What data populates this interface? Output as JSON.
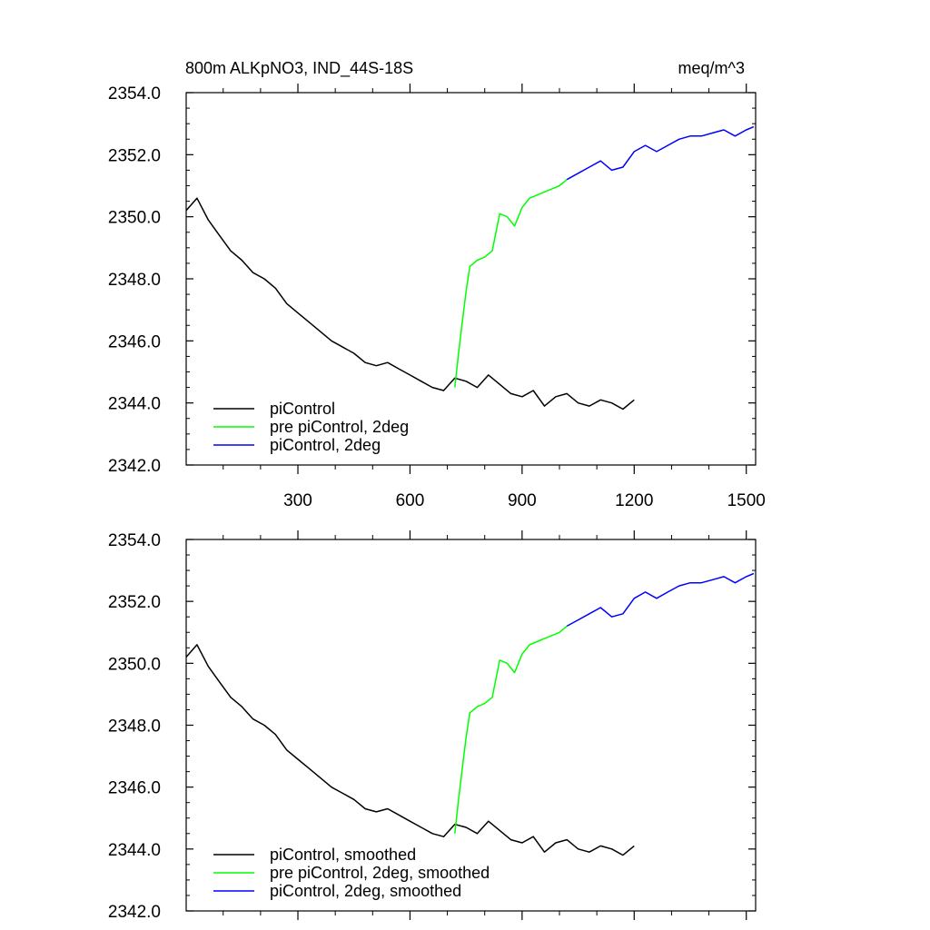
{
  "chart_data": [
    {
      "type": "line",
      "title": "800m ALKpNO3, IND_44S-18S",
      "units": "meq/m^3",
      "xlim": [
        1,
        1525
      ],
      "ylim": [
        2342.0,
        2354.0
      ],
      "xticks": [
        300,
        600,
        900,
        1200,
        1500
      ],
      "xtick_labels": [
        "300",
        "600",
        "900",
        "1200",
        "1500"
      ],
      "yticks": [
        2342,
        2344,
        2346,
        2348,
        2350,
        2352,
        2354
      ],
      "ytick_labels": [
        "2342.0",
        "2344.0",
        "2346.0",
        "2348.0",
        "2350.0",
        "2352.0",
        "2354.0"
      ],
      "legend_position": "bottom-left",
      "series": [
        {
          "name": "piControl",
          "color": "#000000",
          "x": [
            1,
            30,
            60,
            90,
            120,
            150,
            180,
            210,
            240,
            270,
            300,
            330,
            360,
            390,
            420,
            450,
            480,
            510,
            540,
            570,
            600,
            630,
            660,
            690,
            720,
            750,
            780,
            810,
            840,
            870,
            900,
            930,
            960,
            990,
            1020,
            1050,
            1080,
            1110,
            1140,
            1170,
            1200
          ],
          "y": [
            2350.2,
            2350.6,
            2349.9,
            2349.4,
            2348.9,
            2348.6,
            2348.2,
            2348.0,
            2347.7,
            2347.2,
            2346.9,
            2346.6,
            2346.3,
            2346.0,
            2345.8,
            2345.6,
            2345.3,
            2345.2,
            2345.3,
            2345.1,
            2344.9,
            2344.7,
            2344.5,
            2344.4,
            2344.8,
            2344.7,
            2344.5,
            2344.9,
            2344.6,
            2344.3,
            2344.2,
            2344.4,
            2343.9,
            2344.2,
            2344.3,
            2344.0,
            2343.9,
            2344.1,
            2344.0,
            2343.8,
            2344.1
          ]
        },
        {
          "name": "pre piControl, 2deg",
          "color": "#00ff00",
          "x": [
            720,
            730,
            740,
            750,
            760,
            770,
            780,
            800,
            820,
            840,
            860,
            880,
            900,
            920,
            940,
            960,
            980,
            1000,
            1020
          ],
          "y": [
            2344.5,
            2345.6,
            2346.6,
            2347.6,
            2348.4,
            2348.5,
            2348.6,
            2348.7,
            2348.9,
            2350.1,
            2350.0,
            2349.7,
            2350.3,
            2350.6,
            2350.7,
            2350.8,
            2350.9,
            2351.0,
            2351.2
          ]
        },
        {
          "name": "piControl, 2deg",
          "color": "#0000ff",
          "x": [
            1020,
            1050,
            1080,
            1110,
            1140,
            1170,
            1200,
            1230,
            1260,
            1290,
            1320,
            1350,
            1380,
            1410,
            1440,
            1470,
            1500,
            1520
          ],
          "y": [
            2351.2,
            2351.4,
            2351.6,
            2351.8,
            2351.5,
            2351.6,
            2352.1,
            2352.3,
            2352.1,
            2352.3,
            2352.5,
            2352.6,
            2352.6,
            2352.7,
            2352.8,
            2352.6,
            2352.8,
            2352.9
          ]
        }
      ]
    },
    {
      "type": "line",
      "xlim": [
        1,
        1525
      ],
      "ylim": [
        2342.0,
        2354.0
      ],
      "yticks": [
        2342,
        2344,
        2346,
        2348,
        2350,
        2352,
        2354
      ],
      "ytick_labels": [
        "2342.0",
        "2344.0",
        "2346.0",
        "2348.0",
        "2350.0",
        "2352.0",
        "2354.0"
      ],
      "legend_position": "bottom-left",
      "series": [
        {
          "name": "piControl, smoothed",
          "color": "#000000",
          "x": [
            1,
            30,
            60,
            90,
            120,
            150,
            180,
            210,
            240,
            270,
            300,
            330,
            360,
            390,
            420,
            450,
            480,
            510,
            540,
            570,
            600,
            630,
            660,
            690,
            720,
            750,
            780,
            810,
            840,
            870,
            900,
            930,
            960,
            990,
            1020,
            1050,
            1080,
            1110,
            1140,
            1170,
            1200
          ],
          "y": [
            2350.2,
            2350.6,
            2349.9,
            2349.4,
            2348.9,
            2348.6,
            2348.2,
            2348.0,
            2347.7,
            2347.2,
            2346.9,
            2346.6,
            2346.3,
            2346.0,
            2345.8,
            2345.6,
            2345.3,
            2345.2,
            2345.3,
            2345.1,
            2344.9,
            2344.7,
            2344.5,
            2344.4,
            2344.8,
            2344.7,
            2344.5,
            2344.9,
            2344.6,
            2344.3,
            2344.2,
            2344.4,
            2343.9,
            2344.2,
            2344.3,
            2344.0,
            2343.9,
            2344.1,
            2344.0,
            2343.8,
            2344.1
          ]
        },
        {
          "name": "pre piControl, 2deg, smoothed",
          "color": "#00ff00",
          "x": [
            720,
            730,
            740,
            750,
            760,
            770,
            780,
            800,
            820,
            840,
            860,
            880,
            900,
            920,
            940,
            960,
            980,
            1000,
            1020
          ],
          "y": [
            2344.5,
            2345.6,
            2346.6,
            2347.6,
            2348.4,
            2348.5,
            2348.6,
            2348.7,
            2348.9,
            2350.1,
            2350.0,
            2349.7,
            2350.3,
            2350.6,
            2350.7,
            2350.8,
            2350.9,
            2351.0,
            2351.2
          ]
        },
        {
          "name": "piControl, 2deg, smoothed",
          "color": "#0000ff",
          "x": [
            1020,
            1050,
            1080,
            1110,
            1140,
            1170,
            1200,
            1230,
            1260,
            1290,
            1320,
            1350,
            1380,
            1410,
            1440,
            1470,
            1500,
            1520
          ],
          "y": [
            2351.2,
            2351.4,
            2351.6,
            2351.8,
            2351.5,
            2351.6,
            2352.1,
            2352.3,
            2352.1,
            2352.3,
            2352.5,
            2352.6,
            2352.6,
            2352.7,
            2352.8,
            2352.6,
            2352.8,
            2352.9
          ]
        }
      ]
    }
  ]
}
